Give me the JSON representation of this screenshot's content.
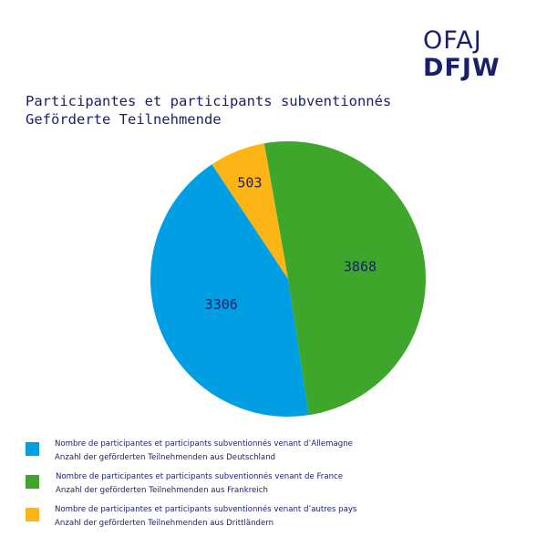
{
  "logo": {
    "line1": "OFAJ",
    "line2": "DFJW"
  },
  "title": {
    "line1": "Participantes et participants subventionnés",
    "line2": "Geförderte Teilnehmende"
  },
  "chart_data": {
    "type": "pie",
    "title": "Participantes et participants subventionnés / Geförderte Teilnehmende",
    "slices": [
      {
        "label_fr": "Nombre de participantes et participants subventionnés venant d’Allemagne",
        "label_de": "Anzahl der geförderten Teilnehmenden aus Deutschland",
        "value": 3306,
        "color": "#009fe3"
      },
      {
        "label_fr": "Nombre de participantes et participants subventionnés venant de France",
        "label_de": "Anzahl der geförderten Teilnehmenden aus Frankreich",
        "value": 3868,
        "color": "#3ea62b"
      },
      {
        "label_fr": "Nombre de participantes et participants subventionnés venant d’autres pays",
        "label_de": "Anzahl der geförderten Teilnehmenden aus Drittländern",
        "value": 503,
        "color": "#fdb515"
      }
    ],
    "legend_position": "bottom"
  }
}
